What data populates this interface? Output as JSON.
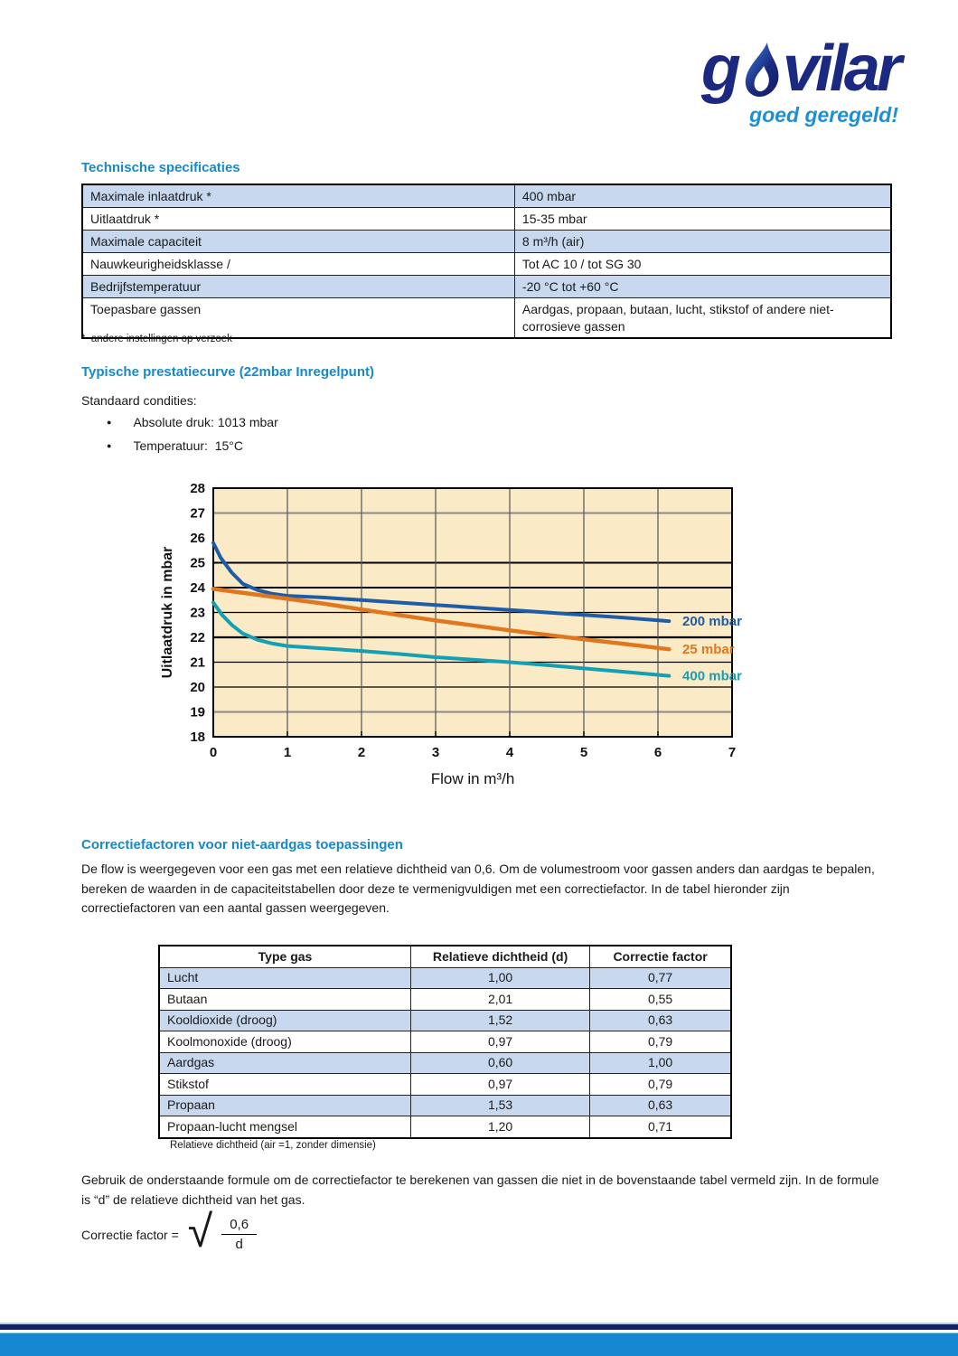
{
  "brand": {
    "logo_prefix": "g",
    "logo_suffix": "vilar",
    "tagline": "goed geregeld!",
    "logo_color": "#1b2a80",
    "tagline_color": "#1f8fd4",
    "heading_color": "#1789c9",
    "shaded_row_color": "#c8d8ee",
    "footer_bar_color": "#1787d1",
    "footer_stripe_navy": "#181d6e"
  },
  "specs": {
    "heading": "Technische specificaties",
    "rows": [
      {
        "label": "Maximale inlaatdruk *",
        "value": "400 mbar"
      },
      {
        "label": "Uitlaatdruk *",
        "value": "15-35 mbar"
      },
      {
        "label": "Maximale capaciteit",
        "value": "8 m³/h (air)"
      },
      {
        "label": "Nauwkeurigheidsklasse /",
        "value": "Tot AC 10 / tot SG 30"
      },
      {
        "label": "Bedrijfstemperatuur",
        "value": "-20 °C  tot +60 °C"
      },
      {
        "label": "Toepasbare gassen",
        "value": "Aardgas, propaan, butaan, lucht, stikstof of andere niet-corrosieve gassen"
      }
    ],
    "footnote": "*  andere instellingen op verzoek"
  },
  "performance": {
    "heading": "Typische prestatiecurve (22mbar Inregelpunt)",
    "conditions_label": "Standaard condities:",
    "bullets": [
      "Absolute druk: 1013 mbar",
      "Temperatuur:  15°C"
    ]
  },
  "chart_data": {
    "type": "line",
    "xlabel": "Flow in m³/h",
    "ylabel": "Uitlaatdruk in mbar",
    "xlim": [
      0,
      7
    ],
    "ylim": [
      18,
      28
    ],
    "x_ticks": [
      0,
      1,
      2,
      3,
      4,
      5,
      6,
      7
    ],
    "y_ticks": [
      18,
      19,
      20,
      21,
      22,
      23,
      24,
      25,
      26,
      27,
      28
    ],
    "background": "#faeac6",
    "grid": "on",
    "legend_position": "right-of-line-ends",
    "series": [
      {
        "name": "200 mbar",
        "color": "#1e5ca8",
        "stroke_width": 4,
        "points": [
          [
            0,
            25.8
          ],
          [
            0.1,
            25.2
          ],
          [
            0.25,
            24.6
          ],
          [
            0.4,
            24.15
          ],
          [
            0.6,
            23.9
          ],
          [
            0.8,
            23.75
          ],
          [
            1,
            23.67
          ],
          [
            1.5,
            23.6
          ],
          [
            2,
            23.5
          ],
          [
            2.5,
            23.4
          ],
          [
            3,
            23.3
          ],
          [
            3.5,
            23.2
          ],
          [
            4,
            23.1
          ],
          [
            4.5,
            23.0
          ],
          [
            5,
            22.9
          ],
          [
            5.5,
            22.8
          ],
          [
            6.15,
            22.65
          ]
        ]
      },
      {
        "name": "25 mbar",
        "color": "#e0771f",
        "stroke_width": 4.5,
        "points": [
          [
            0,
            23.95
          ],
          [
            0.5,
            23.75
          ],
          [
            1,
            23.55
          ],
          [
            1.5,
            23.35
          ],
          [
            2,
            23.12
          ],
          [
            2.5,
            22.9
          ],
          [
            3,
            22.68
          ],
          [
            3.5,
            22.48
          ],
          [
            4,
            22.28
          ],
          [
            4.5,
            22.1
          ],
          [
            5,
            21.92
          ],
          [
            5.5,
            21.75
          ],
          [
            6.15,
            21.52
          ]
        ]
      },
      {
        "name": "400 mbar",
        "color": "#159fb4",
        "stroke_width": 4,
        "points": [
          [
            0,
            23.4
          ],
          [
            0.12,
            22.9
          ],
          [
            0.25,
            22.5
          ],
          [
            0.4,
            22.15
          ],
          [
            0.6,
            21.9
          ],
          [
            0.8,
            21.75
          ],
          [
            1,
            21.65
          ],
          [
            1.5,
            21.55
          ],
          [
            2,
            21.45
          ],
          [
            2.5,
            21.33
          ],
          [
            3,
            21.2
          ],
          [
            3.5,
            21.1
          ],
          [
            4,
            21.0
          ],
          [
            4.5,
            20.88
          ],
          [
            5,
            20.75
          ],
          [
            5.5,
            20.62
          ],
          [
            6.15,
            20.45
          ]
        ]
      }
    ]
  },
  "correction": {
    "heading": "Correctiefactoren voor niet-aardgas toepassingen",
    "paragraph": "De flow is weergegeven voor een gas met een relatieve dichtheid van 0,6. Om de volumestroom voor gassen anders dan aardgas te bepalen, bereken de waarden in de capaciteitstabellen  door deze te vermenigvuldigen met een correctiefactor. In de tabel hieronder zijn correctiefactoren van een aantal gassen weergegeven.",
    "table": {
      "headers": [
        "Type gas",
        "Relatieve dichtheid (d)",
        "Correctie factor"
      ],
      "rows": [
        [
          "Lucht",
          "1,00",
          "0,77"
        ],
        [
          "Butaan",
          "2,01",
          "0,55"
        ],
        [
          "Kooldioxide (droog)",
          "1,52",
          "0,63"
        ],
        [
          "Koolmonoxide (droog)",
          "0,97",
          "0,79"
        ],
        [
          "Aardgas",
          "0,60",
          "1,00"
        ],
        [
          "Stikstof",
          "0,97",
          "0,79"
        ],
        [
          "Propaan",
          "1,53",
          "0,63"
        ],
        [
          "Propaan-lucht mengsel",
          "1,20",
          "0,71"
        ]
      ]
    },
    "caption": "Relatieve dichtheid (air =1, zonder dimensie)",
    "closing_paragraph": "Gebruik de onderstaande formule om de correctiefactor te berekenen van gassen die niet in de bovenstaande tabel vermeld zijn. In de formule is “d” de relatieve dichtheid van het gas.",
    "formula": {
      "label": "Correctie factor =",
      "radical": "√",
      "numerator": "0,6",
      "denominator": "d"
    }
  }
}
